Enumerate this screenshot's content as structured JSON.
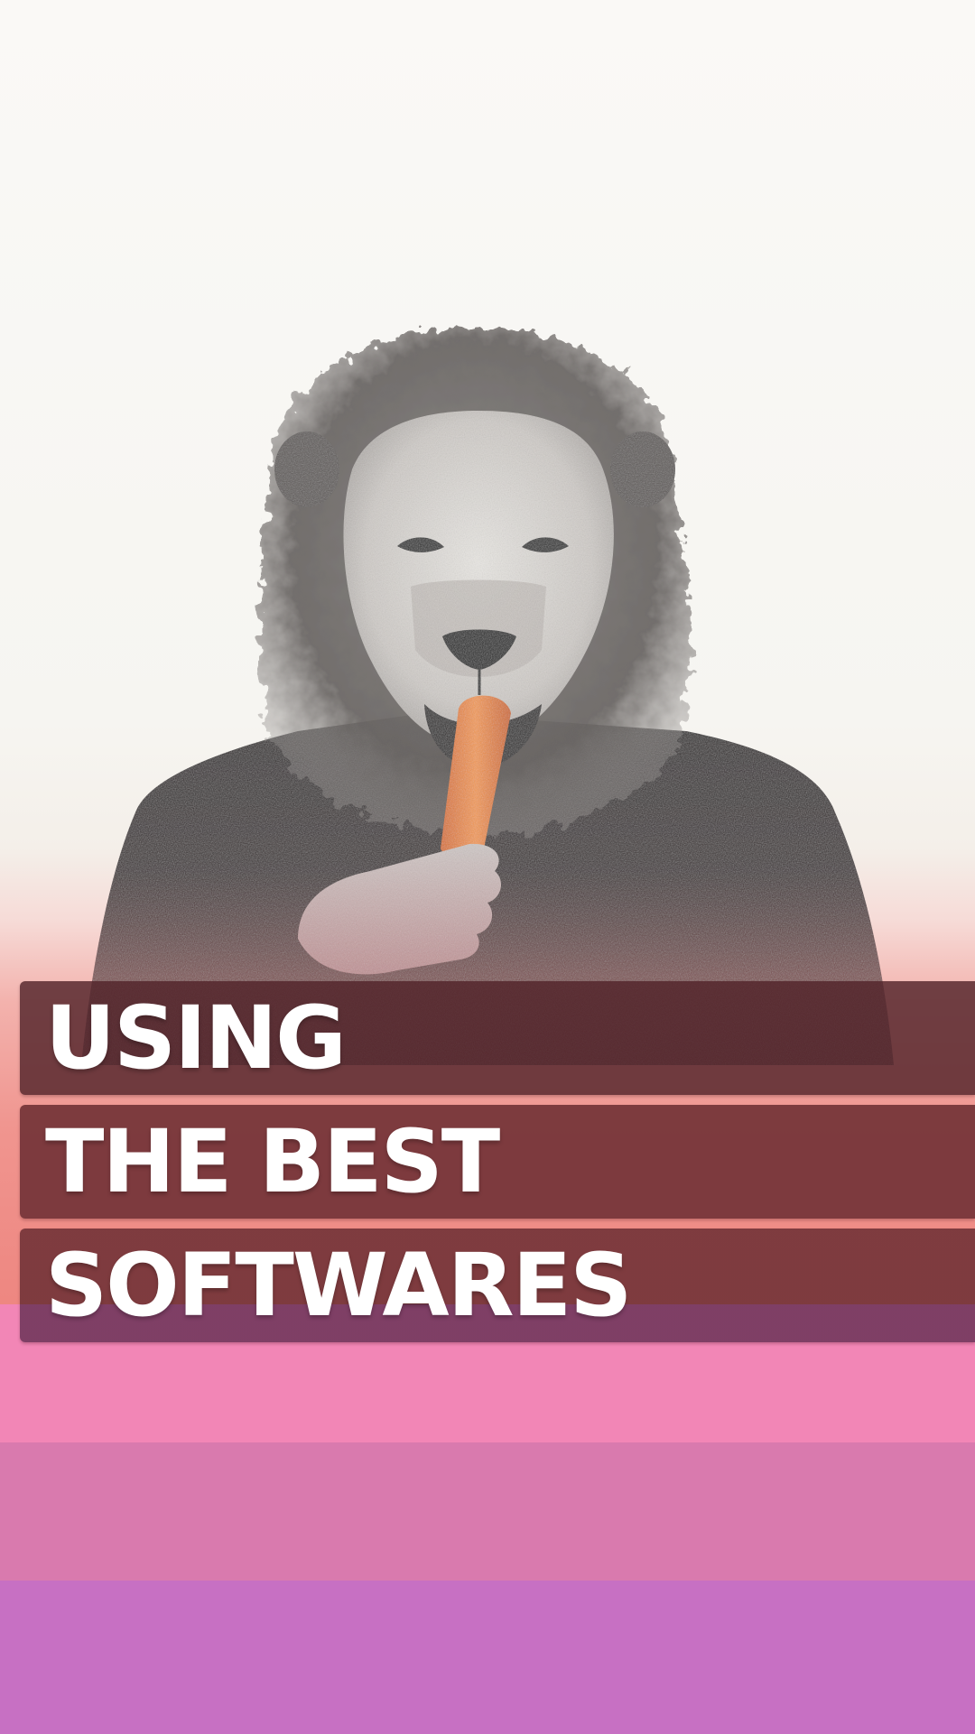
{
  "scene": {
    "subject": "lion-head-man-eating-carrot",
    "background_color": "#f8f7f3",
    "carrot_color": "#f08a40",
    "jacket_color": "#2b2526"
  },
  "headline": {
    "lines": [
      "USING",
      "THE BEST",
      "SOFTWARES"
    ],
    "text_color": "#ffffff"
  },
  "stripes": {
    "colors": [
      "#f286b6",
      "#d97aae",
      "#c770c3"
    ]
  }
}
